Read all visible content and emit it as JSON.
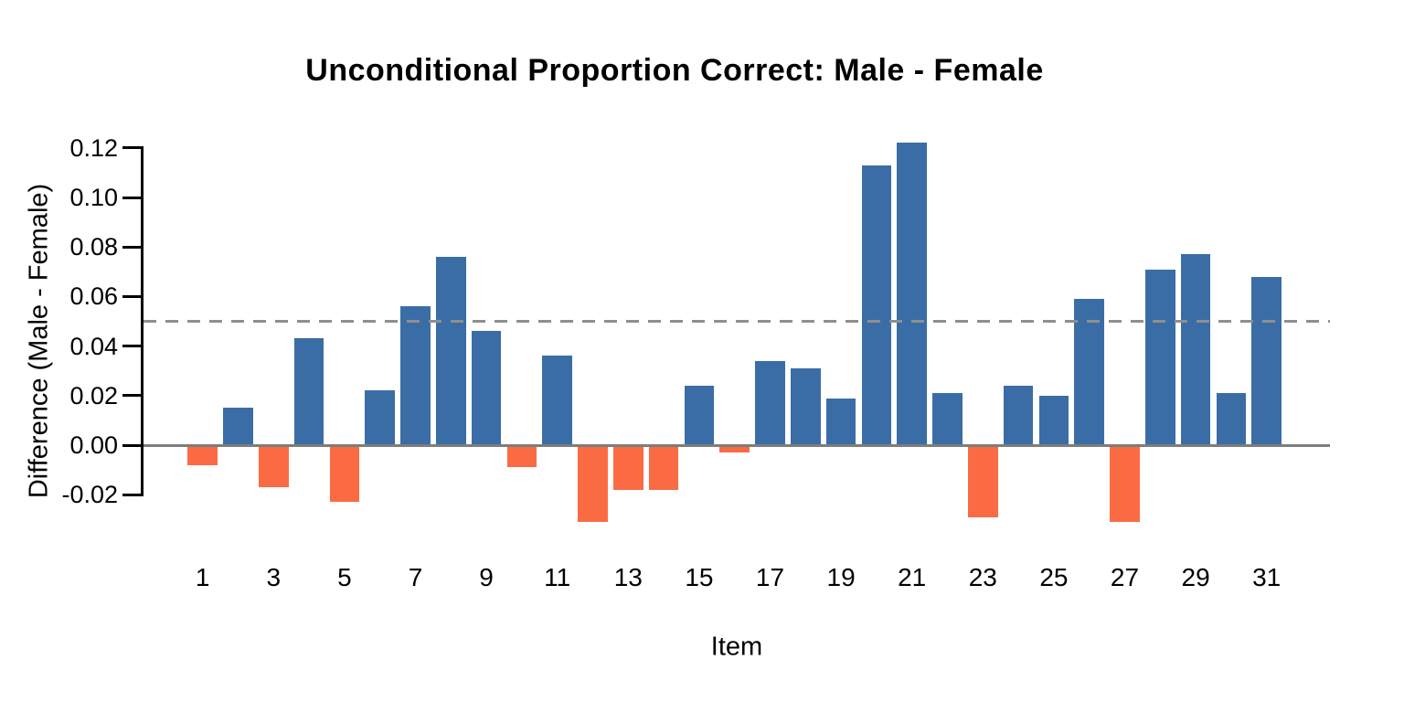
{
  "chart_data": {
    "type": "bar",
    "title": "Unconditional Proportion Correct: Male - Female",
    "xlabel": "Item",
    "ylabel": "Difference (Male - Female)",
    "categories": [
      1,
      2,
      3,
      4,
      5,
      6,
      7,
      8,
      9,
      10,
      11,
      12,
      13,
      14,
      15,
      16,
      17,
      18,
      19,
      20,
      21,
      22,
      23,
      24,
      25,
      26,
      27,
      28,
      29,
      30,
      31
    ],
    "values": [
      -0.008,
      0.015,
      -0.017,
      0.043,
      -0.023,
      0.022,
      0.056,
      0.076,
      0.046,
      -0.009,
      0.036,
      -0.031,
      -0.018,
      -0.018,
      0.024,
      -0.003,
      0.034,
      0.031,
      0.019,
      0.113,
      0.122,
      0.021,
      -0.029,
      0.024,
      0.02,
      0.059,
      -0.031,
      0.071,
      0.077,
      0.021,
      0.068
    ],
    "x_tick_labels": [
      "1",
      "3",
      "5",
      "7",
      "9",
      "11",
      "13",
      "15",
      "17",
      "19",
      "21",
      "23",
      "25",
      "27",
      "29",
      "31"
    ],
    "y_ticks": [
      {
        "label": "-0.02",
        "value": -0.02
      },
      {
        "label": "0.00",
        "value": 0.0
      },
      {
        "label": "0.02",
        "value": 0.02
      },
      {
        "label": "0.04",
        "value": 0.04
      },
      {
        "label": "0.06",
        "value": 0.06
      },
      {
        "label": "0.08",
        "value": 0.08
      },
      {
        "label": "0.10",
        "value": 0.1
      },
      {
        "label": "0.12",
        "value": 0.12
      }
    ],
    "ylim": [
      -0.035,
      0.13
    ],
    "ref_line": {
      "value": 0.05,
      "style": "dashed"
    },
    "zero_line": {
      "value": 0.0
    },
    "grid": false,
    "legend": false,
    "colors": {
      "positive_bar": "#3A6DA5",
      "negative_bar": "#FA6B43",
      "zero_line": "#7d7d7d",
      "ref_line": "#8f8f8f",
      "axis": "#000000",
      "text": "#000000"
    }
  }
}
